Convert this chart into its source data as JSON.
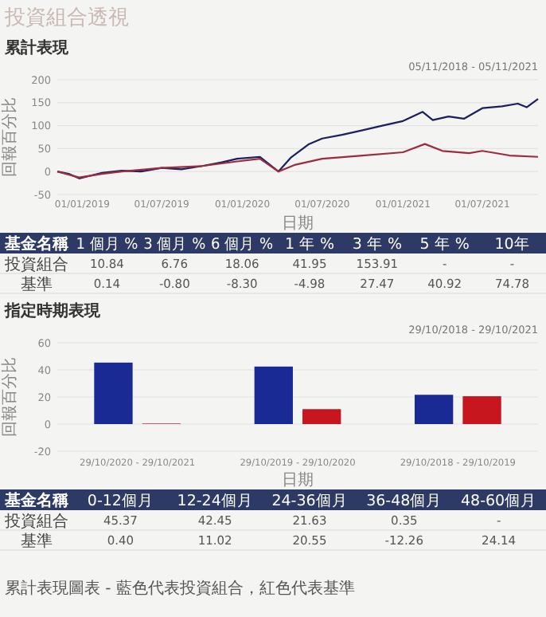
{
  "chart_data": [
    {
      "type": "line",
      "title": "投資組合透視",
      "subtitle": "累計表現",
      "annotations": [
        "05/11/2018 - 05/11/2021"
      ],
      "xlabel": "日期",
      "ylabel": "回報百分比",
      "xlim": [
        "2018-11-05",
        "2021-11-05"
      ],
      "ylim": [
        -50,
        200
      ],
      "yticks": [
        -50,
        0,
        50,
        100,
        150,
        200
      ],
      "xticks": [
        {
          "value": "2019-01-01",
          "label": "01/01/2019"
        },
        {
          "value": "2019-07-01",
          "label": "01/07/2019"
        },
        {
          "value": "2020-01-01",
          "label": "01/01/2020"
        },
        {
          "value": "2020-07-01",
          "label": "01/07/2020"
        },
        {
          "value": "2021-01-01",
          "label": "01/01/2021"
        },
        {
          "value": "2021-07-01",
          "label": "01/07/2021"
        }
      ],
      "grid": "y",
      "marker": "none",
      "line_style": "solid",
      "series": [
        {
          "color": "#1b1f5e",
          "x": [
            "2018-11-05",
            "2018-12-01",
            "2018-12-25",
            "2019-01-15",
            "2019-02-15",
            "2019-04-01",
            "2019-05-15",
            "2019-07-01",
            "2019-08-15",
            "2019-10-01",
            "2019-11-15",
            "2019-12-20",
            "2020-02-10",
            "2020-03-23",
            "2020-04-20",
            "2020-06-01",
            "2020-07-01",
            "2020-08-15",
            "2020-10-01",
            "2020-11-15",
            "2021-01-01",
            "2021-02-15",
            "2021-03-10",
            "2021-04-15",
            "2021-05-20",
            "2021-07-01",
            "2021-08-15",
            "2021-09-20",
            "2021-10-10",
            "2021-11-05"
          ],
          "values": [
            0,
            -5,
            -15,
            -10,
            -3,
            2,
            0,
            8,
            5,
            12,
            20,
            28,
            32,
            0,
            30,
            60,
            72,
            80,
            90,
            100,
            110,
            130,
            112,
            120,
            115,
            138,
            142,
            148,
            140,
            158
          ]
        },
        {
          "color": "#9b2d3f",
          "x": [
            "2018-11-05",
            "2018-12-25",
            "2019-02-15",
            "2019-04-01",
            "2019-07-01",
            "2019-10-01",
            "2019-12-20",
            "2020-02-10",
            "2020-03-23",
            "2020-05-01",
            "2020-07-01",
            "2020-10-01",
            "2021-01-01",
            "2021-02-20",
            "2021-04-01",
            "2021-06-01",
            "2021-07-01",
            "2021-09-01",
            "2021-11-05"
          ],
          "values": [
            0,
            -13,
            -5,
            0,
            8,
            12,
            22,
            28,
            0,
            15,
            28,
            35,
            42,
            60,
            45,
            40,
            45,
            35,
            32
          ]
        }
      ]
    },
    {
      "type": "other",
      "legend_title": "基金名稱",
      "categories": [
        "1 個月 %",
        "3 個月 %",
        "6 個月 %",
        "1 年 %",
        "3 年 %",
        "5 年 %",
        "10年"
      ],
      "series": [
        {
          "name": "投資組合",
          "values": [
            10.84,
            6.76,
            18.06,
            41.95,
            153.91,
            null,
            null
          ],
          "value_labels": [
            "10.84",
            "6.76",
            "18.06",
            "41.95",
            "153.91",
            "-",
            "-"
          ]
        },
        {
          "name": "基準",
          "values": [
            0.14,
            -0.8,
            -8.3,
            -4.98,
            27.47,
            40.92,
            74.78
          ],
          "value_labels": [
            "0.14",
            "-0.80",
            "-8.30",
            "-4.98",
            "27.47",
            "40.92",
            "74.78"
          ]
        }
      ]
    },
    {
      "type": "bar",
      "title": "指定時期表現",
      "annotations": [
        "29/10/2018 - 29/10/2021"
      ],
      "xlabel": "日期",
      "ylabel": "回報百分比",
      "categories": [
        "29/10/2020 - 29/10/2021",
        "29/10/2019 - 29/10/2020",
        "29/10/2018 - 29/10/2019"
      ],
      "ylim": [
        -20,
        60
      ],
      "yticks": [
        -20,
        0,
        20,
        40,
        60
      ],
      "grid": "y",
      "series": [
        {
          "color": "#1a2a94",
          "values": [
            45.37,
            42.45,
            21.63
          ]
        },
        {
          "color": "#c8161e",
          "values": [
            0.4,
            11.02,
            20.55
          ]
        }
      ]
    },
    {
      "type": "other",
      "legend_title": "基金名稱",
      "categories": [
        "0-12個月",
        "12-24個月",
        "24-36個月",
        "36-48個月",
        "48-60個月"
      ],
      "annotations": [
        "累計表現圖表 - 藍色代表投資組合，紅色代表基準"
      ],
      "series": [
        {
          "name": "投資組合",
          "values": [
            45.37,
            42.45,
            21.63,
            0.35,
            null
          ],
          "value_labels": [
            "45.37",
            "42.45",
            "21.63",
            "0.35",
            "-"
          ]
        },
        {
          "name": "基準",
          "values": [
            0.4,
            11.02,
            20.55,
            -12.26,
            24.14
          ],
          "value_labels": [
            "0.40",
            "11.02",
            "20.55",
            "-12.26",
            "24.14"
          ]
        }
      ]
    }
  ]
}
